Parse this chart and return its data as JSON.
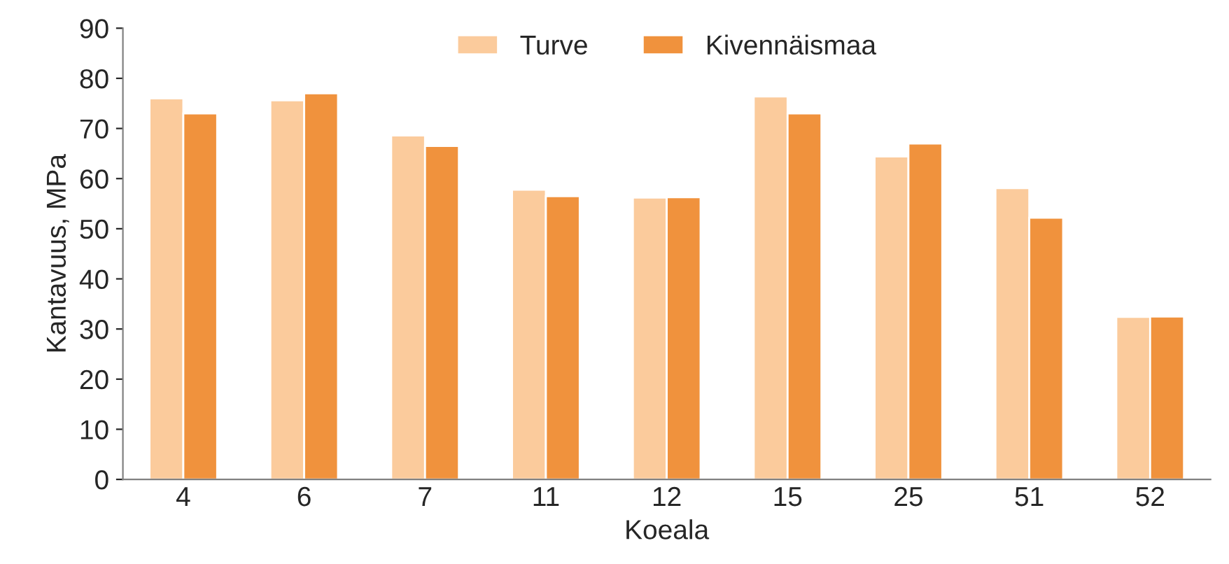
{
  "chart_data": {
    "type": "bar",
    "xlabel": "Koeala",
    "ylabel": "Kantavuus, MPa",
    "categories": [
      "4",
      "6",
      "7",
      "11",
      "12",
      "15",
      "25",
      "51",
      "52"
    ],
    "series": [
      {
        "name": "Turve",
        "color": "#fbcb9c",
        "values": [
          76,
          75.6,
          68.6,
          57.8,
          56.2,
          76.4,
          64.4,
          58.1,
          32.4
        ]
      },
      {
        "name": "Kivennäismaa",
        "color": "#f0923d",
        "values": [
          73,
          77,
          66.5,
          56.5,
          56.3,
          73,
          67,
          52.2,
          32.5
        ]
      }
    ],
    "ylim": [
      0,
      90
    ],
    "yticks": [
      0,
      10,
      20,
      30,
      40,
      50,
      60,
      70,
      80,
      90
    ],
    "grid": false,
    "legend": "top"
  }
}
